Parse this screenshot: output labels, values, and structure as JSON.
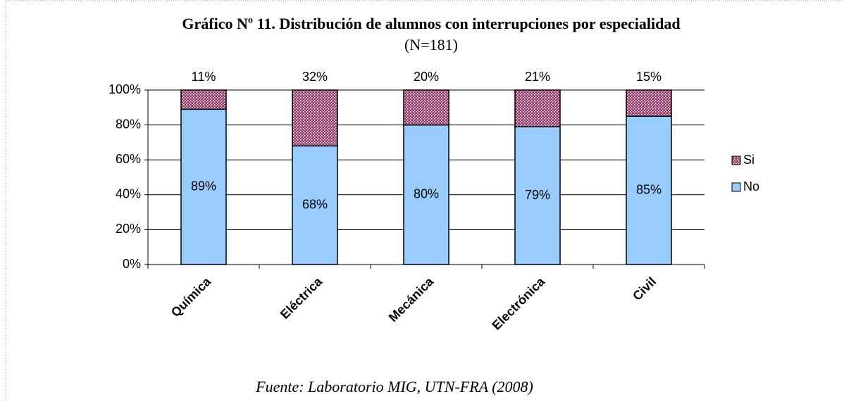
{
  "chart_data": {
    "type": "stacked_bar_100",
    "title": "Gráfico Nº 11. Distribución de alumnos con interrupciones por especialidad",
    "subtitle": "(N=181)",
    "source": "Fuente: Laboratorio MIG, UTN-FRA (2008)",
    "categories": [
      "Química",
      "Eléctrica",
      "Mecánica",
      "Electrónica",
      "Civil"
    ],
    "series": [
      {
        "name": "No",
        "color": "#99ccff",
        "values": [
          89,
          68,
          80,
          79,
          85
        ],
        "value_labels": [
          "89%",
          "68%",
          "80%",
          "79%",
          "85%"
        ]
      },
      {
        "name": "Si",
        "color": "#993366",
        "values": [
          11,
          32,
          20,
          21,
          15
        ],
        "value_labels": [
          "11%",
          "32%",
          "20%",
          "21%",
          "15%"
        ]
      }
    ],
    "ylim": [
      0,
      100
    ],
    "yticks": [
      {
        "value": 0,
        "label": "0%"
      },
      {
        "value": 20,
        "label": "20%"
      },
      {
        "value": 40,
        "label": "40%"
      },
      {
        "value": 60,
        "label": "60%"
      },
      {
        "value": 80,
        "label": "80%"
      },
      {
        "value": 100,
        "label": "100%"
      }
    ],
    "grid": true,
    "legend": "right"
  }
}
